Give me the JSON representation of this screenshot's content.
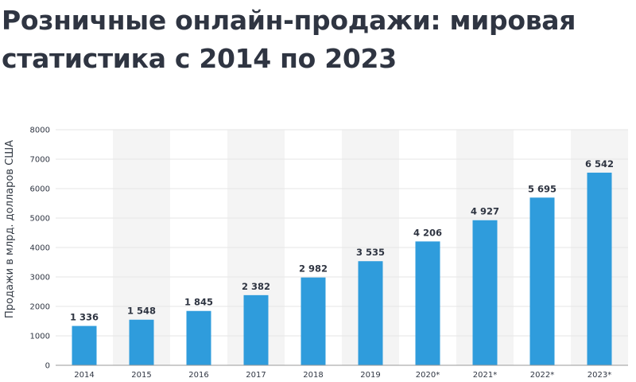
{
  "title": "Розничные онлайн-продажи: мировая статистика с 2014 по 2023",
  "colors": {
    "bar": "#2f9cdc",
    "band": "#f4f4f4",
    "grid": "#e6e6e6",
    "text": "#2f3542"
  },
  "chart_data": {
    "type": "bar",
    "title": "Розничные онлайн-продажи: мировая статистика с 2014 по 2023",
    "xlabel": "",
    "ylabel": "Продажи в млрд. долларов США",
    "categories": [
      "2014",
      "2015",
      "2016",
      "2017",
      "2018",
      "2019",
      "2020*",
      "2021*",
      "2022*",
      "2023*"
    ],
    "values": [
      1336,
      1548,
      1845,
      2382,
      2982,
      3535,
      4206,
      4927,
      5695,
      6542
    ],
    "value_labels": [
      "1 336",
      "1 548",
      "1 845",
      "2 382",
      "2 982",
      "3 535",
      "4 206",
      "4 927",
      "5 695",
      "6 542"
    ],
    "ylim": [
      0,
      8000
    ],
    "yticks": [
      0,
      1000,
      2000,
      3000,
      4000,
      5000,
      6000,
      7000,
      8000
    ],
    "grid": true,
    "legend": "none"
  }
}
